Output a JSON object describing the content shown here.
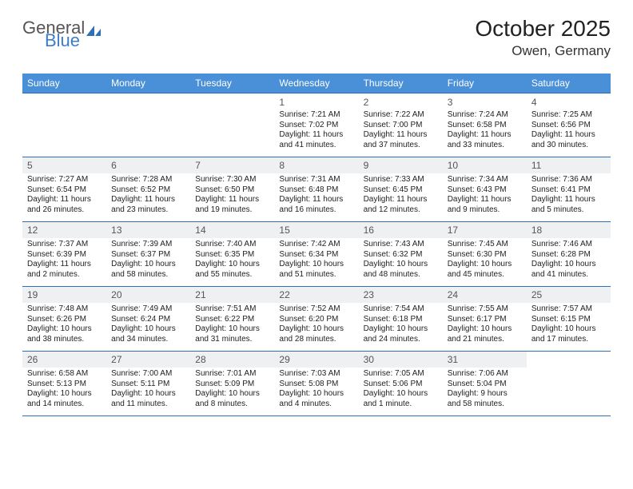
{
  "brand": {
    "word1": "General",
    "word2": "Blue",
    "color_gray": "#555555",
    "color_blue": "#3d7cc9"
  },
  "title": "October 2025",
  "location": "Owen, Germany",
  "header_bg": "#4a90d9",
  "row_border": "#2f6fb5",
  "shade_bg": "#eef0f2",
  "weekdays": [
    "Sunday",
    "Monday",
    "Tuesday",
    "Wednesday",
    "Thursday",
    "Friday",
    "Saturday"
  ],
  "weeks": [
    {
      "shaded": false,
      "days": [
        null,
        null,
        null,
        {
          "n": "1",
          "sunrise": "7:21 AM",
          "sunset": "7:02 PM",
          "dl": "11 hours and 41 minutes."
        },
        {
          "n": "2",
          "sunrise": "7:22 AM",
          "sunset": "7:00 PM",
          "dl": "11 hours and 37 minutes."
        },
        {
          "n": "3",
          "sunrise": "7:24 AM",
          "sunset": "6:58 PM",
          "dl": "11 hours and 33 minutes."
        },
        {
          "n": "4",
          "sunrise": "7:25 AM",
          "sunset": "6:56 PM",
          "dl": "11 hours and 30 minutes."
        }
      ]
    },
    {
      "shaded": true,
      "days": [
        {
          "n": "5",
          "sunrise": "7:27 AM",
          "sunset": "6:54 PM",
          "dl": "11 hours and 26 minutes."
        },
        {
          "n": "6",
          "sunrise": "7:28 AM",
          "sunset": "6:52 PM",
          "dl": "11 hours and 23 minutes."
        },
        {
          "n": "7",
          "sunrise": "7:30 AM",
          "sunset": "6:50 PM",
          "dl": "11 hours and 19 minutes."
        },
        {
          "n": "8",
          "sunrise": "7:31 AM",
          "sunset": "6:48 PM",
          "dl": "11 hours and 16 minutes."
        },
        {
          "n": "9",
          "sunrise": "7:33 AM",
          "sunset": "6:45 PM",
          "dl": "11 hours and 12 minutes."
        },
        {
          "n": "10",
          "sunrise": "7:34 AM",
          "sunset": "6:43 PM",
          "dl": "11 hours and 9 minutes."
        },
        {
          "n": "11",
          "sunrise": "7:36 AM",
          "sunset": "6:41 PM",
          "dl": "11 hours and 5 minutes."
        }
      ]
    },
    {
      "shaded": true,
      "days": [
        {
          "n": "12",
          "sunrise": "7:37 AM",
          "sunset": "6:39 PM",
          "dl": "11 hours and 2 minutes."
        },
        {
          "n": "13",
          "sunrise": "7:39 AM",
          "sunset": "6:37 PM",
          "dl": "10 hours and 58 minutes."
        },
        {
          "n": "14",
          "sunrise": "7:40 AM",
          "sunset": "6:35 PM",
          "dl": "10 hours and 55 minutes."
        },
        {
          "n": "15",
          "sunrise": "7:42 AM",
          "sunset": "6:34 PM",
          "dl": "10 hours and 51 minutes."
        },
        {
          "n": "16",
          "sunrise": "7:43 AM",
          "sunset": "6:32 PM",
          "dl": "10 hours and 48 minutes."
        },
        {
          "n": "17",
          "sunrise": "7:45 AM",
          "sunset": "6:30 PM",
          "dl": "10 hours and 45 minutes."
        },
        {
          "n": "18",
          "sunrise": "7:46 AM",
          "sunset": "6:28 PM",
          "dl": "10 hours and 41 minutes."
        }
      ]
    },
    {
      "shaded": true,
      "days": [
        {
          "n": "19",
          "sunrise": "7:48 AM",
          "sunset": "6:26 PM",
          "dl": "10 hours and 38 minutes."
        },
        {
          "n": "20",
          "sunrise": "7:49 AM",
          "sunset": "6:24 PM",
          "dl": "10 hours and 34 minutes."
        },
        {
          "n": "21",
          "sunrise": "7:51 AM",
          "sunset": "6:22 PM",
          "dl": "10 hours and 31 minutes."
        },
        {
          "n": "22",
          "sunrise": "7:52 AM",
          "sunset": "6:20 PM",
          "dl": "10 hours and 28 minutes."
        },
        {
          "n": "23",
          "sunrise": "7:54 AM",
          "sunset": "6:18 PM",
          "dl": "10 hours and 24 minutes."
        },
        {
          "n": "24",
          "sunrise": "7:55 AM",
          "sunset": "6:17 PM",
          "dl": "10 hours and 21 minutes."
        },
        {
          "n": "25",
          "sunrise": "7:57 AM",
          "sunset": "6:15 PM",
          "dl": "10 hours and 17 minutes."
        }
      ]
    },
    {
      "shaded": true,
      "days": [
        {
          "n": "26",
          "sunrise": "6:58 AM",
          "sunset": "5:13 PM",
          "dl": "10 hours and 14 minutes."
        },
        {
          "n": "27",
          "sunrise": "7:00 AM",
          "sunset": "5:11 PM",
          "dl": "10 hours and 11 minutes."
        },
        {
          "n": "28",
          "sunrise": "7:01 AM",
          "sunset": "5:09 PM",
          "dl": "10 hours and 8 minutes."
        },
        {
          "n": "29",
          "sunrise": "7:03 AM",
          "sunset": "5:08 PM",
          "dl": "10 hours and 4 minutes."
        },
        {
          "n": "30",
          "sunrise": "7:05 AM",
          "sunset": "5:06 PM",
          "dl": "10 hours and 1 minute."
        },
        {
          "n": "31",
          "sunrise": "7:06 AM",
          "sunset": "5:04 PM",
          "dl": "9 hours and 58 minutes."
        },
        null
      ]
    }
  ],
  "labels": {
    "sunrise": "Sunrise: ",
    "sunset": "Sunset: ",
    "daylight": "Daylight: "
  }
}
